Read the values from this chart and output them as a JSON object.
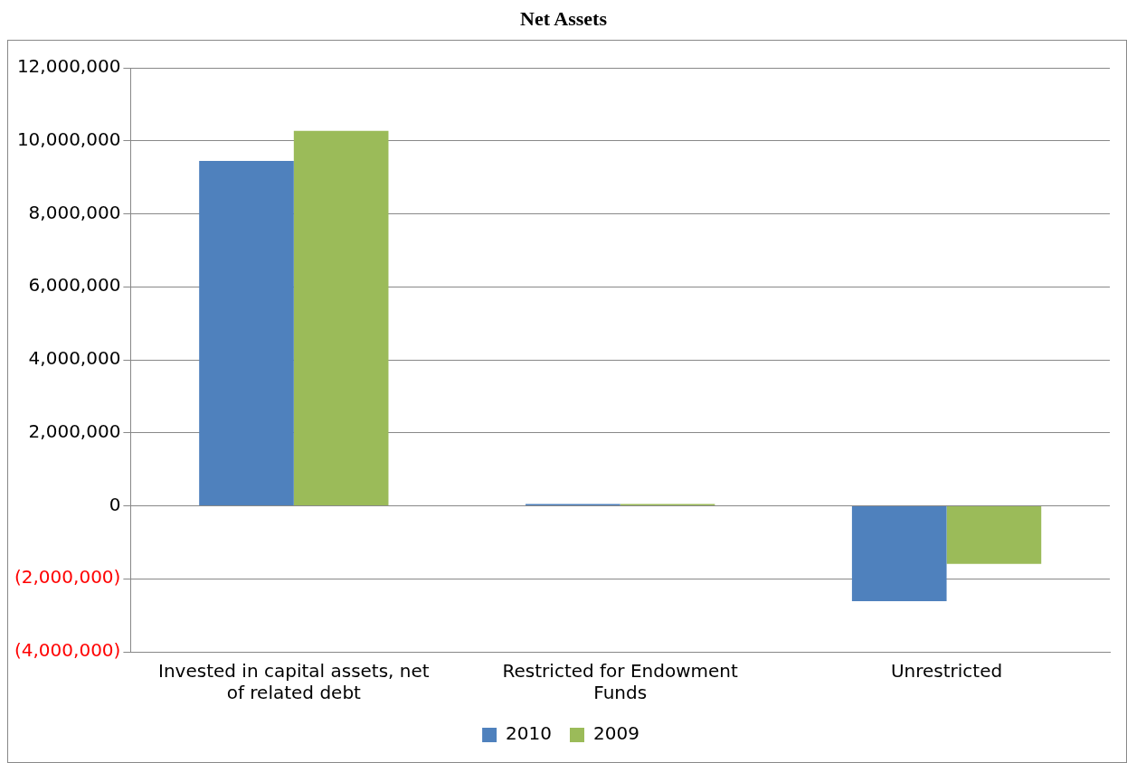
{
  "chart_data": {
    "type": "bar",
    "title": "Net Assets",
    "categories": [
      "Invested in capital assets, net of related debt",
      "Restricted for Endowment Funds",
      "Unrestricted"
    ],
    "series": [
      {
        "name": "2010",
        "color": "#4f81bd",
        "values": [
          9450000,
          50000,
          -2610000
        ]
      },
      {
        "name": "2009",
        "color": "#9bbb59",
        "values": [
          10270000,
          50000,
          -1590000
        ]
      }
    ],
    "ylim": [
      -4000000,
      12000000
    ],
    "yticks": [
      {
        "value": -4000000,
        "label": "(4,000,000)"
      },
      {
        "value": -2000000,
        "label": "(2,000,000)"
      },
      {
        "value": 0,
        "label": "0"
      },
      {
        "value": 2000000,
        "label": "2,000,000"
      },
      {
        "value": 4000000,
        "label": "4,000,000"
      },
      {
        "value": 6000000,
        "label": "6,000,000"
      },
      {
        "value": 8000000,
        "label": "8,000,000"
      },
      {
        "value": 10000000,
        "label": "10,000,000"
      },
      {
        "value": 12000000,
        "label": "12,000,000"
      }
    ],
    "grid": "y",
    "legend": "bottom"
  }
}
